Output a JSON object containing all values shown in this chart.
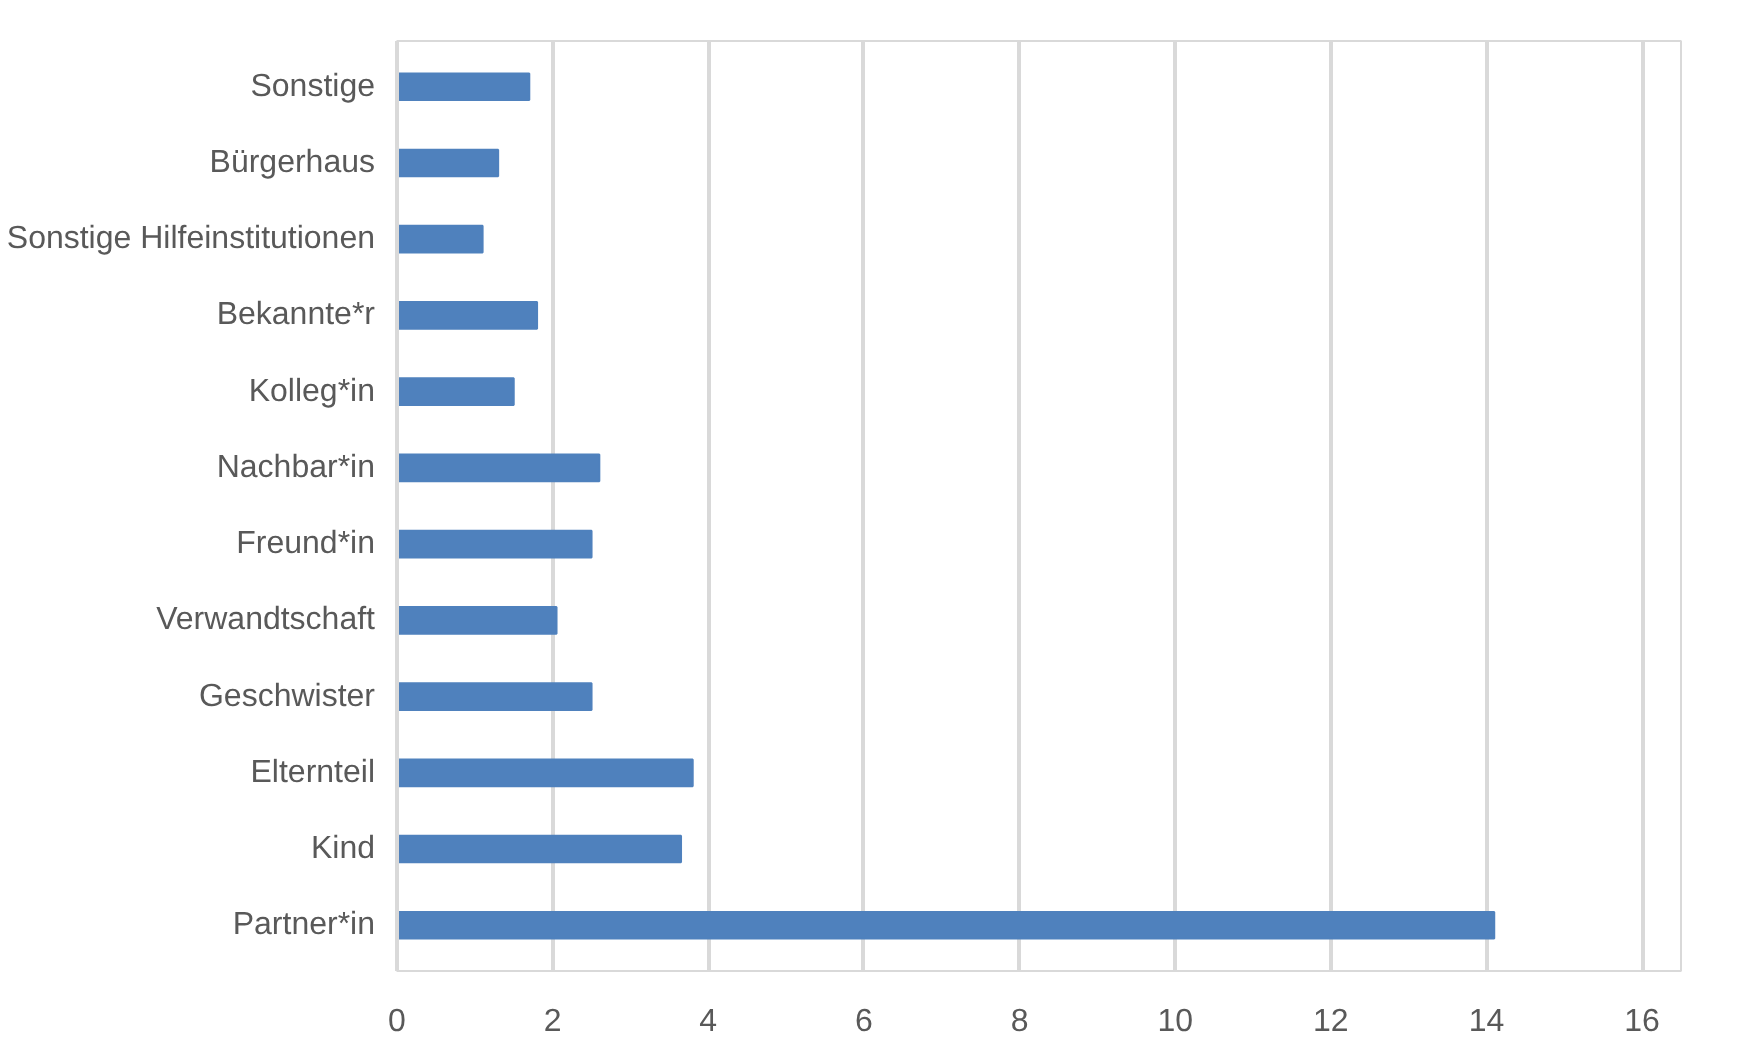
{
  "chart_data": {
    "type": "bar",
    "orientation": "horizontal",
    "categories": [
      "Sonstige",
      "Bürgerhaus",
      "Sonstige Hilfeinstitutionen",
      "Bekannte*r",
      "Kolleg*in",
      "Nachbar*in",
      "Freund*in",
      "Verwandtschaft",
      "Geschwister",
      "Elternteil",
      "Kind",
      "Partner*in"
    ],
    "values": [
      1.7,
      1.3,
      1.1,
      1.8,
      1.5,
      2.6,
      2.5,
      2.05,
      2.5,
      3.8,
      3.65,
      14.1
    ],
    "color": "#4f81bd",
    "xlim": [
      0,
      16.5
    ],
    "xticks": [
      0,
      2,
      4,
      6,
      8,
      10,
      12,
      14,
      16
    ],
    "grid": "x"
  }
}
